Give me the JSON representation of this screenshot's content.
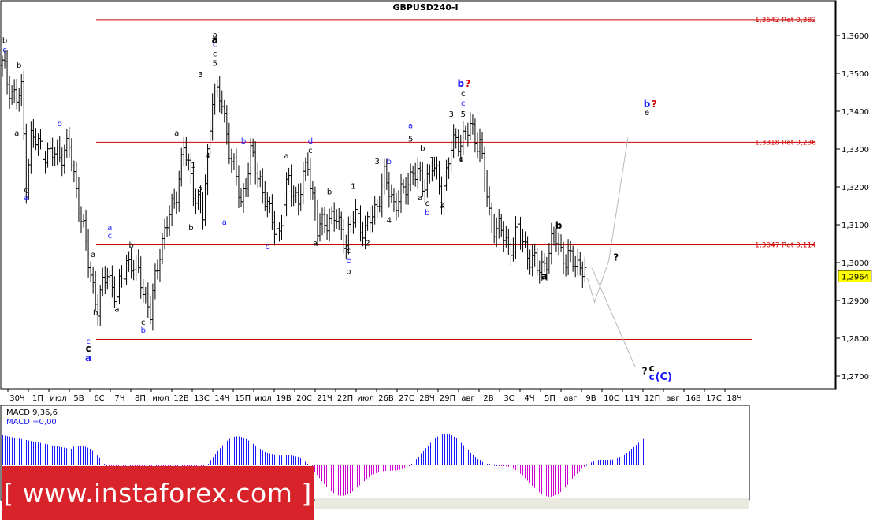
{
  "chart_data": {
    "type": "candlestick",
    "title": "GBPUSD240-I",
    "price_range": [
      1.2655,
      1.3705
    ],
    "price_ticks": [
      "1,3600",
      "1,3500",
      "1,3400",
      "1,3300",
      "1,3200",
      "1,3100",
      "1,3000",
      "1,2900",
      "1,2800",
      "1,2700"
    ],
    "current_price": "1,2964",
    "date_ticks": [
      "30Ч",
      "1П",
      "июл",
      "5В",
      "6С",
      "7Ч",
      "8П",
      "июл",
      "12В",
      "13С",
      "14Ч",
      "15П",
      "июл",
      "19В",
      "20С",
      "21Ч",
      "22П",
      "июл",
      "26В",
      "27С",
      "28Ч",
      "29П",
      "авг",
      "2В",
      "3С",
      "4Ч",
      "5П",
      "авг",
      "9В",
      "10С",
      "11Ч",
      "12П",
      "авг",
      "16В",
      "17С",
      "18Ч"
    ],
    "fib_levels": [
      {
        "price": 1.3642,
        "label": "1,3642 Ret 0,382"
      },
      {
        "price": 1.3318,
        "label": "1,3318 Ret 0,236"
      },
      {
        "price": 1.3047,
        "label": "1,3047 Ret 0,114"
      },
      {
        "price": 1.2797,
        "label": ""
      }
    ],
    "macd": {
      "label_line1": "MACD 9,36,6",
      "label_line2": "MACD =0,00"
    },
    "wave_labels": [
      {
        "text": "b",
        "price": 1.358,
        "index": 1,
        "color": "#000000"
      },
      {
        "text": "c",
        "price": 1.3555,
        "index": 1,
        "color": "#1a1aff"
      },
      {
        "text": "b",
        "price": 1.3515,
        "index": 7,
        "color": "#000000"
      },
      {
        "text": "a",
        "price": 1.3335,
        "index": 6,
        "color": "#000000"
      },
      {
        "text": "c",
        "price": 1.3185,
        "index": 10,
        "color": "#000000"
      },
      {
        "text": "a",
        "price": 1.3165,
        "index": 10,
        "color": "#1a1aff"
      },
      {
        "text": "b",
        "price": 1.336,
        "index": 24,
        "color": "#1a1aff"
      },
      {
        "text": "a",
        "price": 1.3015,
        "index": 38,
        "color": "#000000"
      },
      {
        "text": "a",
        "price": 1.3085,
        "index": 45,
        "color": "#1a1aff"
      },
      {
        "text": "c",
        "price": 1.3065,
        "index": 45,
        "color": "#1a1aff"
      },
      {
        "text": "b",
        "price": 1.286,
        "index": 39,
        "color": "#000000"
      },
      {
        "text": "a",
        "price": 1.287,
        "index": 48,
        "color": "#000000"
      },
      {
        "text": "b",
        "price": 1.304,
        "index": 54,
        "color": "#000000"
      },
      {
        "text": "c",
        "price": 1.2835,
        "index": 59,
        "color": "#000000"
      },
      {
        "text": "b",
        "price": 1.2815,
        "index": 59,
        "color": "#1a1aff"
      },
      {
        "text": "c",
        "price": 1.2785,
        "index": 36,
        "color": "#1a1aff"
      },
      {
        "text": "a",
        "price": 1.3335,
        "index": 73,
        "color": "#000000"
      },
      {
        "text": "1",
        "price": 1.325,
        "index": 80,
        "color": "#000000"
      },
      {
        "text": "2",
        "price": 1.3185,
        "index": 83,
        "color": "#000000"
      },
      {
        "text": "b",
        "price": 1.3085,
        "index": 79,
        "color": "#000000"
      },
      {
        "text": "3",
        "price": 1.349,
        "index": 83,
        "color": "#000000"
      },
      {
        "text": "4",
        "price": 1.3275,
        "index": 86,
        "color": "#000000"
      },
      {
        "text": "a",
        "price": 1.3595,
        "index": 89,
        "color": "#000000"
      },
      {
        "text": "c",
        "price": 1.357,
        "index": 89,
        "color": "#1a1aff"
      },
      {
        "text": "c",
        "price": 1.3545,
        "index": 89,
        "color": "#000000"
      },
      {
        "text": "5",
        "price": 1.352,
        "index": 89,
        "color": "#000000"
      },
      {
        "text": "b",
        "price": 1.3315,
        "index": 101,
        "color": "#1a1aff"
      },
      {
        "text": "a",
        "price": 1.31,
        "index": 93,
        "color": "#1a1aff"
      },
      {
        "text": "a",
        "price": 1.3275,
        "index": 119,
        "color": "#000000"
      },
      {
        "text": "d",
        "price": 1.3315,
        "index": 129,
        "color": "#1a1aff"
      },
      {
        "text": "c",
        "price": 1.329,
        "index": 129,
        "color": "#000000"
      },
      {
        "text": "c",
        "price": 1.3035,
        "index": 111,
        "color": "#1a1aff"
      },
      {
        "text": "a",
        "price": 1.3045,
        "index": 131,
        "color": "#000000"
      },
      {
        "text": "b",
        "price": 1.318,
        "index": 137,
        "color": "#000000"
      },
      {
        "text": "c",
        "price": 1.3025,
        "index": 145,
        "color": "#000000"
      },
      {
        "text": "e",
        "price": 1.3,
        "index": 145,
        "color": "#1a1aff"
      },
      {
        "text": "b",
        "price": 1.297,
        "index": 145,
        "color": "#000000"
      },
      {
        "text": "1",
        "price": 1.3195,
        "index": 147,
        "color": "#000000"
      },
      {
        "text": "2",
        "price": 1.3045,
        "index": 153,
        "color": "#000000"
      },
      {
        "text": "3",
        "price": 1.326,
        "index": 157,
        "color": "#000000"
      },
      {
        "text": "4",
        "price": 1.3105,
        "index": 162,
        "color": "#000000"
      },
      {
        "text": "a",
        "price": 1.3355,
        "index": 171,
        "color": "#1a1aff"
      },
      {
        "text": "5",
        "price": 1.332,
        "index": 171,
        "color": "#000000"
      },
      {
        "text": "b",
        "price": 1.3295,
        "index": 176,
        "color": "#000000"
      },
      {
        "text": "1",
        "price": 1.3265,
        "index": 180,
        "color": "#000000"
      },
      {
        "text": "a",
        "price": 1.3165,
        "index": 175,
        "color": "#000000"
      },
      {
        "text": "c",
        "price": 1.315,
        "index": 178,
        "color": "#000000"
      },
      {
        "text": "b",
        "price": 1.3125,
        "index": 178,
        "color": "#1a1aff"
      },
      {
        "text": "2",
        "price": 1.3145,
        "index": 184,
        "color": "#000000"
      },
      {
        "text": "3",
        "price": 1.3385,
        "index": 188,
        "color": "#000000"
      },
      {
        "text": "4",
        "price": 1.3265,
        "index": 192,
        "color": "#000000"
      },
      {
        "text": "5",
        "price": 1.3385,
        "index": 193,
        "color": "#000000"
      },
      {
        "text": "c",
        "price": 1.3415,
        "index": 193,
        "color": "#1a1aff"
      },
      {
        "text": "c",
        "price": 1.344,
        "index": 193,
        "color": "#000000"
      },
      {
        "text": "b",
        "price": 1.326,
        "index": 162,
        "color": "#1a1aff"
      },
      {
        "text": "e",
        "price": 1.339,
        "index": 270,
        "color": "#000000"
      }
    ],
    "bold_labels": [
      {
        "text": "a",
        "price": 1.358,
        "index": 89,
        "color": "#000000"
      },
      {
        "text": "b",
        "price": 1.3465,
        "index": 192,
        "color": "#1a1aff"
      },
      {
        "text": "?",
        "price": 1.3465,
        "index": 195,
        "color": "#d10000"
      },
      {
        "text": "b",
        "price": 1.341,
        "index": 270,
        "color": "#1a1aff"
      },
      {
        "text": "?",
        "price": 1.341,
        "index": 273,
        "color": "#d10000"
      },
      {
        "text": "b",
        "price": 1.309,
        "index": 233,
        "color": "#000000"
      },
      {
        "text": "a",
        "price": 1.2955,
        "index": 227,
        "color": "#000000"
      },
      {
        "text": "?",
        "price": 1.3005,
        "index": 257,
        "color": "#000000"
      },
      {
        "text": "a",
        "price": 1.274,
        "index": 36,
        "color": "#1a1aff"
      },
      {
        "text": "c",
        "price": 1.2765,
        "index": 36,
        "color": "#000000"
      },
      {
        "text": "?",
        "price": 1.2705,
        "index": 269,
        "color": "#000000"
      },
      {
        "text": "c",
        "price": 1.2712,
        "index": 272,
        "color": "#000000"
      },
      {
        "text": "c",
        "price": 1.269,
        "index": 272,
        "color": "#1a1aff"
      },
      {
        "text": "(C)",
        "price": 1.269,
        "index": 277,
        "color": "#1a1aff"
      }
    ],
    "forecast_path": [
      {
        "index": 245,
        "price": 1.296
      },
      {
        "index": 248,
        "price": 1.2895
      },
      {
        "index": 254,
        "price": 1.3005
      },
      {
        "index": 262,
        "price": 1.333
      },
      {
        "index": 247,
        "price": 1.2985
      },
      {
        "index": 265,
        "price": 1.2725
      }
    ]
  },
  "brand": {
    "text": "[ www.instaforex.com ]"
  }
}
